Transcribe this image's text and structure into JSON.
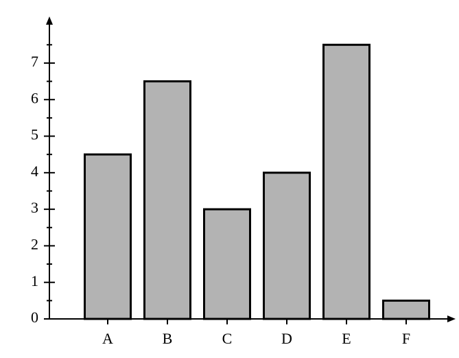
{
  "chart_data": {
    "type": "bar",
    "categories": [
      "A",
      "B",
      "C",
      "D",
      "E",
      "F"
    ],
    "values": [
      4.5,
      6.5,
      3,
      4,
      7.5,
      0.5
    ],
    "color": "#b3b3b3",
    "ylim": [
      0,
      8.2
    ],
    "yticks": [
      0,
      1,
      2,
      3,
      4,
      5,
      6,
      7
    ],
    "yminorticks": [
      0.5,
      1.5,
      2.5,
      3.5,
      4.5,
      5.5,
      6.5,
      7.5
    ]
  }
}
